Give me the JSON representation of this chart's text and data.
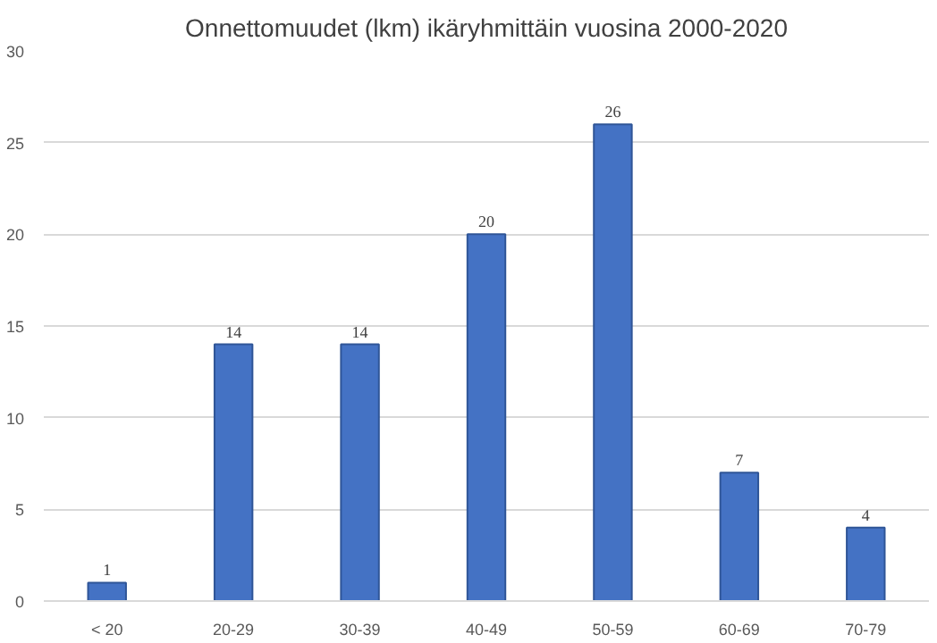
{
  "chart_data": {
    "type": "bar",
    "title": "Onnettomuudet (lkm) ikäryhmittäin vuosina 2000-2020",
    "categories": [
      "< 20",
      "20-29",
      "30-39",
      "40-49",
      "50-59",
      "60-69",
      "70-79"
    ],
    "values": [
      1,
      14,
      14,
      20,
      26,
      7,
      4
    ],
    "color": "#4472c4",
    "ylim": [
      0,
      30
    ],
    "yticks": [
      0,
      5,
      10,
      15,
      20,
      25,
      30
    ],
    "grid": "y",
    "data_labels": true
  }
}
